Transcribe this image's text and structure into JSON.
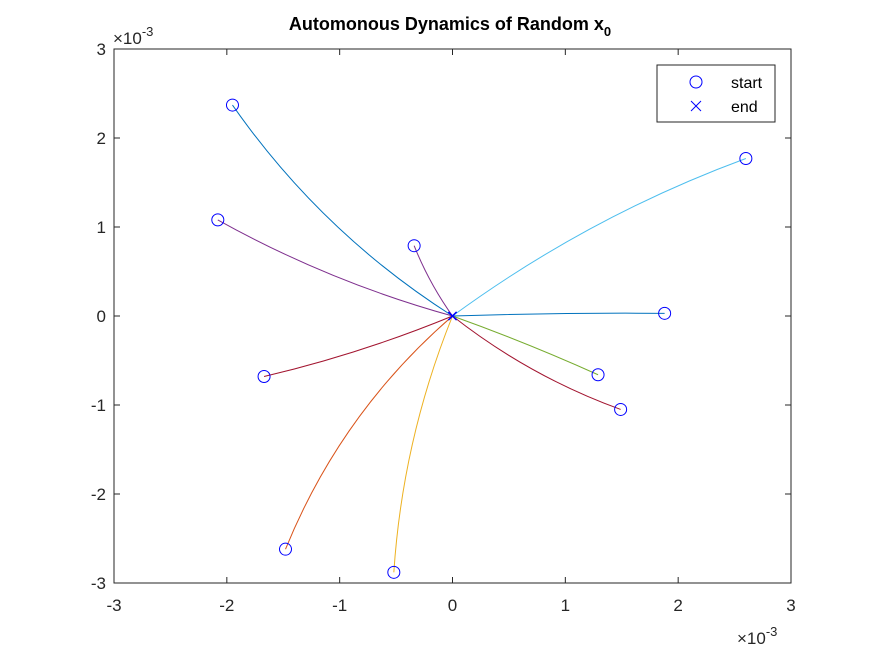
{
  "chart_data": {
    "type": "line",
    "title": "Automonous Dynamics of Random x",
    "title_subscript": "0",
    "xlabel": "",
    "ylabel": "",
    "xlim": [
      -3,
      3
    ],
    "ylim": [
      -3,
      3
    ],
    "x_ticks": [
      -3,
      -2,
      -1,
      0,
      1,
      2,
      3
    ],
    "y_ticks": [
      -3,
      -2,
      -1,
      0,
      1,
      2,
      3
    ],
    "x_tick_labels": [
      "-3",
      "-2",
      "-1",
      "0",
      "1",
      "2",
      "3"
    ],
    "y_tick_labels": [
      "-3",
      "-2",
      "-1",
      "0",
      "1",
      "2",
      "3"
    ],
    "x_multiplier": "×10",
    "x_multiplier_exp": "-3",
    "y_multiplier": "×10",
    "y_multiplier_exp": "-3",
    "grid": false,
    "legend_position": "top-right",
    "legend": [
      {
        "label": "start",
        "marker": "circle",
        "color": "#0000ff"
      },
      {
        "label": "end",
        "marker": "x",
        "color": "#0000ff"
      }
    ],
    "end_point": [
      0,
      0
    ],
    "series": [
      {
        "start": [
          -1.95,
          2.37
        ],
        "color": "#0072bd",
        "bend": 0.1
      },
      {
        "start": [
          -1.48,
          -2.62
        ],
        "color": "#d95319",
        "bend": -0.12
      },
      {
        "start": [
          -0.52,
          -2.88
        ],
        "color": "#edb120",
        "bend": -0.08
      },
      {
        "start": [
          -2.08,
          1.08
        ],
        "color": "#7e2f8e",
        "bend": 0.06
      },
      {
        "start": [
          1.29,
          -0.66
        ],
        "color": "#77ac30",
        "bend": 0.02
      },
      {
        "start": [
          2.6,
          1.77
        ],
        "color": "#4dbeee",
        "bend": 0.07
      },
      {
        "start": [
          -1.67,
          -0.68
        ],
        "color": "#a2142f",
        "bend": 0.04
      },
      {
        "start": [
          1.88,
          0.03
        ],
        "color": "#0072bd",
        "bend": 0.01
      },
      {
        "start": [
          -0.34,
          0.79
        ],
        "color": "#7e2f8e",
        "bend": 0.06
      },
      {
        "start": [
          1.49,
          -1.05
        ],
        "color": "#a2142f",
        "bend": -0.08
      }
    ]
  }
}
